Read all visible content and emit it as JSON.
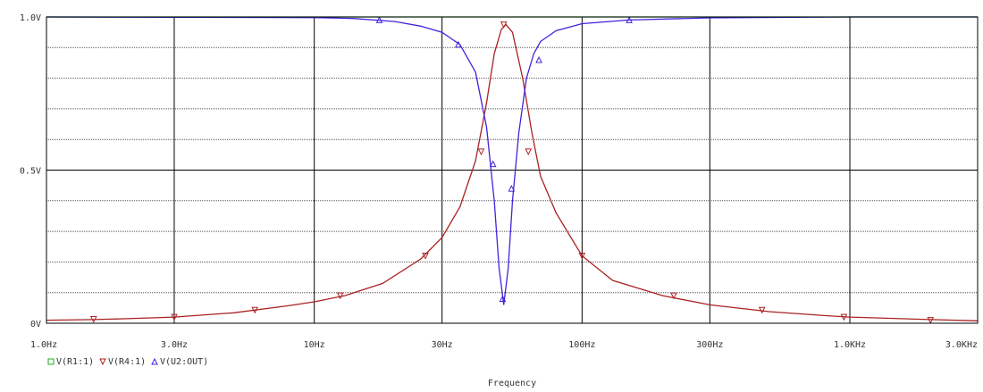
{
  "chart_data": {
    "type": "line",
    "x_scale": "log",
    "xlim": [
      1,
      3000
    ],
    "ylim": [
      0,
      1
    ],
    "xlabel": "Frequency",
    "ylabel": "",
    "title": "",
    "x_tick_values": [
      1,
      3,
      10,
      30,
      100,
      300,
      1000,
      3000
    ],
    "x_tick_labels": [
      "1.0Hz",
      "3.0Hz",
      "10Hz",
      "30Hz",
      "100Hz",
      "300Hz",
      "1.0KHz",
      "3.0KHz"
    ],
    "y_tick_values": [
      0,
      0.5,
      1
    ],
    "y_tick_labels": [
      "0V",
      "0.5V",
      "1.0V"
    ],
    "grid": true,
    "legend_position": "bottom-left",
    "series": [
      {
        "name": "V(R1:1)",
        "color": "#22aa22",
        "marker": "square",
        "x": [
          1,
          3,
          10,
          30,
          50,
          100,
          300,
          1000,
          3000
        ],
        "y": [
          1,
          1,
          1,
          1,
          1,
          1,
          1,
          1,
          1
        ],
        "marker_x": [],
        "marker_y": []
      },
      {
        "name": "V(R4:1)",
        "color": "#aa2222",
        "marker": "triangle-down",
        "x": [
          1,
          1.5,
          2,
          3,
          5,
          8,
          10,
          13,
          18,
          25,
          30,
          35,
          40,
          44,
          47,
          50,
          52,
          55,
          60,
          65,
          70,
          80,
          100,
          130,
          200,
          300,
          500,
          800,
          1000,
          2000,
          3000
        ],
        "y": [
          0.01,
          0.012,
          0.015,
          0.02,
          0.034,
          0.057,
          0.07,
          0.09,
          0.13,
          0.21,
          0.28,
          0.38,
          0.53,
          0.72,
          0.88,
          0.96,
          0.975,
          0.95,
          0.8,
          0.62,
          0.48,
          0.36,
          0.22,
          0.14,
          0.09,
          0.06,
          0.038,
          0.025,
          0.02,
          0.012,
          0.008
        ],
        "marker_x": [
          1.5,
          3,
          6,
          12.5,
          26,
          42,
          51,
          63,
          100,
          220,
          470,
          950,
          2000
        ],
        "marker_y": [
          0.013,
          0.02,
          0.043,
          0.09,
          0.22,
          0.56,
          0.975,
          0.56,
          0.22,
          0.09,
          0.043,
          0.02,
          0.01
        ]
      },
      {
        "name": "V(U2:OUT)",
        "color": "#4422dd",
        "marker": "triangle-up",
        "x": [
          1,
          10,
          14,
          20,
          25,
          30,
          35,
          40,
          44,
          47,
          49,
          51,
          53,
          55,
          58,
          62,
          66,
          70,
          80,
          100,
          150,
          300,
          1000,
          3000
        ],
        "y": [
          1,
          0.998,
          0.995,
          0.985,
          0.97,
          0.95,
          0.91,
          0.82,
          0.64,
          0.4,
          0.18,
          0.06,
          0.18,
          0.4,
          0.62,
          0.8,
          0.88,
          0.92,
          0.955,
          0.978,
          0.99,
          0.997,
          1,
          1
        ],
        "marker_x": [
          17.5,
          34.5,
          46.5,
          50.5,
          54.5,
          69,
          150
        ],
        "marker_y": [
          0.99,
          0.91,
          0.52,
          0.08,
          0.44,
          0.86,
          0.99
        ]
      }
    ]
  }
}
